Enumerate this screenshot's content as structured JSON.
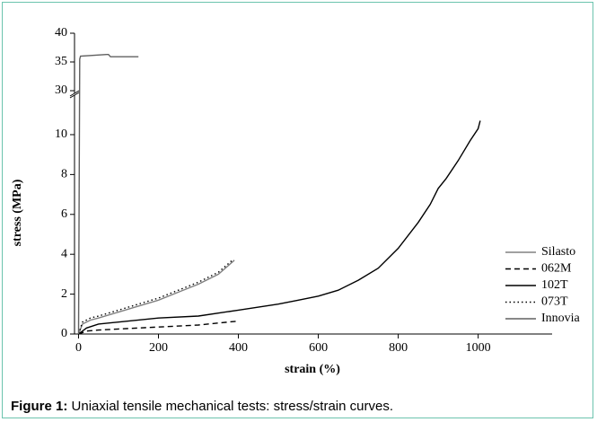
{
  "chart_data": {
    "type": "line",
    "caption_label": "Figure 1:",
    "caption_text": "Uniaxial tensile mechanical tests: stress/strain curves.",
    "x_label": "strain (%)",
    "y_label": "stress (MPa)",
    "xlim": [
      -10,
      1185
    ],
    "xticks": [
      0,
      200,
      400,
      600,
      800,
      1000
    ],
    "ylim": [
      0,
      11.8
    ],
    "yticks": [
      0,
      2,
      4,
      6,
      8,
      10
    ],
    "y2lim": [
      30,
      40
    ],
    "y2ticks": [
      30,
      35,
      40
    ],
    "broken_axis": true,
    "legend": "right",
    "series": [
      {
        "name": "Silasto",
        "color": "#808080",
        "dash": "solid",
        "x": [
          0,
          10,
          30,
          50,
          100,
          150,
          200,
          250,
          300,
          350,
          390
        ],
        "values": [
          0,
          0.5,
          0.7,
          0.8,
          1.1,
          1.4,
          1.7,
          2.1,
          2.5,
          3.0,
          3.7
        ]
      },
      {
        "name": "062M",
        "color": "#000000",
        "dash": "dashed",
        "x": [
          0,
          20,
          50,
          100,
          200,
          300,
          400
        ],
        "values": [
          0,
          0.15,
          0.2,
          0.25,
          0.35,
          0.45,
          0.65
        ]
      },
      {
        "name": "102T",
        "color": "#000000",
        "dash": "solid",
        "x": [
          0,
          20,
          50,
          100,
          200,
          300,
          400,
          500,
          550,
          600,
          650,
          700,
          750,
          800,
          850,
          880,
          900,
          920,
          950,
          980,
          1000,
          1005
        ],
        "values": [
          0,
          0.3,
          0.5,
          0.6,
          0.8,
          0.9,
          1.2,
          1.5,
          1.7,
          1.9,
          2.2,
          2.7,
          3.3,
          4.3,
          5.6,
          6.5,
          7.3,
          7.8,
          8.7,
          9.7,
          10.3,
          10.7
        ]
      },
      {
        "name": "073T",
        "color": "#000000",
        "dash": "dotted",
        "x": [
          0,
          10,
          30,
          50,
          100,
          150,
          200,
          250,
          300,
          350,
          385
        ],
        "values": [
          0,
          0.6,
          0.8,
          0.9,
          1.2,
          1.5,
          1.8,
          2.2,
          2.6,
          3.1,
          3.7
        ]
      },
      {
        "name": "Innovia",
        "color": "#606060",
        "dash": "solid",
        "x": [
          0,
          3,
          5,
          70,
          75,
          80,
          150
        ],
        "values": [
          0,
          35.5,
          36,
          36.3,
          36.3,
          35.9,
          35.9
        ]
      }
    ]
  }
}
